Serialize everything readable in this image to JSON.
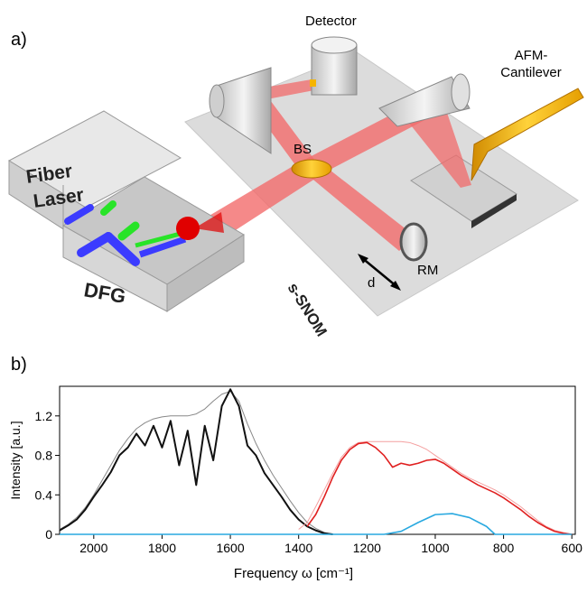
{
  "diagram": {
    "panel_label": "a)",
    "detector": "Detector",
    "cantilever": [
      "AFM-",
      "Cantilever"
    ],
    "fiber_laser": [
      "Fiber",
      "Laser"
    ],
    "bs": "BS",
    "snom": "s-SNOM",
    "rm": "RM",
    "d": "d",
    "dfg": "DFG"
  },
  "chart_data": {
    "type": "line",
    "panel_label": "b)",
    "xlabel": "Frequency ω [cm⁻¹]",
    "ylabel": "Intensity [a.u.]",
    "xlim": [
      2100,
      590
    ],
    "ylim": [
      0,
      1.5
    ],
    "xticks": [
      2000,
      1800,
      1600,
      1400,
      1200,
      1000,
      800,
      600
    ],
    "yticks": [
      0,
      0.4,
      0.8,
      1.2
    ],
    "series": [
      {
        "color": "#888888",
        "width": 1,
        "x": [
          2100,
          2075,
          2050,
          2025,
          2000,
          1975,
          1950,
          1925,
          1900,
          1875,
          1850,
          1825,
          1800,
          1775,
          1750,
          1725,
          1700,
          1675,
          1650,
          1625,
          1600,
          1575,
          1550,
          1525,
          1500,
          1475,
          1450,
          1425,
          1400,
          1375,
          1350,
          1325,
          1300
        ],
        "values": [
          0.05,
          0.1,
          0.17,
          0.27,
          0.4,
          0.55,
          0.7,
          0.85,
          0.97,
          1.07,
          1.13,
          1.17,
          1.19,
          1.2,
          1.2,
          1.2,
          1.22,
          1.27,
          1.35,
          1.42,
          1.45,
          1.35,
          1.12,
          0.92,
          0.75,
          0.6,
          0.47,
          0.34,
          0.22,
          0.12,
          0.06,
          0.02,
          0
        ]
      },
      {
        "color": "#111111",
        "width": 2,
        "x": [
          2100,
          2075,
          2050,
          2025,
          2000,
          1975,
          1950,
          1925,
          1900,
          1875,
          1850,
          1825,
          1800,
          1775,
          1750,
          1725,
          1700,
          1675,
          1650,
          1625,
          1600,
          1575,
          1550,
          1525,
          1500,
          1475,
          1450,
          1425,
          1400,
          1375,
          1350,
          1325,
          1300
        ],
        "values": [
          0.04,
          0.09,
          0.15,
          0.25,
          0.38,
          0.5,
          0.63,
          0.8,
          0.88,
          1.02,
          0.9,
          1.1,
          0.88,
          1.15,
          0.7,
          1.05,
          0.5,
          1.1,
          0.75,
          1.3,
          1.47,
          1.3,
          0.9,
          0.8,
          0.62,
          0.5,
          0.38,
          0.25,
          0.15,
          0.08,
          0.04,
          0.01,
          0
        ]
      },
      {
        "color": "#f4a0a0",
        "width": 1,
        "x": [
          1400,
          1375,
          1350,
          1325,
          1300,
          1275,
          1250,
          1225,
          1200,
          1175,
          1150,
          1125,
          1100,
          1075,
          1050,
          1025,
          1000,
          975,
          950,
          925,
          900,
          875,
          850,
          825,
          800,
          775,
          750,
          725,
          700,
          675,
          650,
          625,
          600
        ],
        "values": [
          0.05,
          0.12,
          0.28,
          0.45,
          0.62,
          0.78,
          0.88,
          0.93,
          0.94,
          0.94,
          0.94,
          0.94,
          0.94,
          0.93,
          0.9,
          0.86,
          0.8,
          0.74,
          0.68,
          0.62,
          0.57,
          0.53,
          0.49,
          0.45,
          0.4,
          0.34,
          0.28,
          0.21,
          0.14,
          0.08,
          0.04,
          0.02,
          0
        ]
      },
      {
        "color": "#e02020",
        "width": 1.6,
        "x": [
          1375,
          1350,
          1325,
          1300,
          1275,
          1250,
          1225,
          1200,
          1175,
          1150,
          1125,
          1100,
          1075,
          1050,
          1025,
          1000,
          975,
          950,
          925,
          900,
          875,
          850,
          825,
          800,
          775,
          750,
          725,
          700,
          675,
          650,
          625,
          600
        ],
        "values": [
          0.08,
          0.2,
          0.38,
          0.58,
          0.75,
          0.86,
          0.92,
          0.93,
          0.88,
          0.8,
          0.68,
          0.72,
          0.7,
          0.72,
          0.75,
          0.76,
          0.72,
          0.66,
          0.6,
          0.55,
          0.5,
          0.46,
          0.42,
          0.37,
          0.31,
          0.25,
          0.18,
          0.12,
          0.07,
          0.03,
          0.01,
          0
        ]
      },
      {
        "color": "#29a9e0",
        "width": 1.6,
        "x": [
          2100,
          1150,
          1100,
          1050,
          1000,
          950,
          900,
          850,
          825,
          600
        ],
        "values": [
          0,
          0,
          0.03,
          0.12,
          0.2,
          0.21,
          0.17,
          0.08,
          0,
          0
        ]
      }
    ]
  }
}
